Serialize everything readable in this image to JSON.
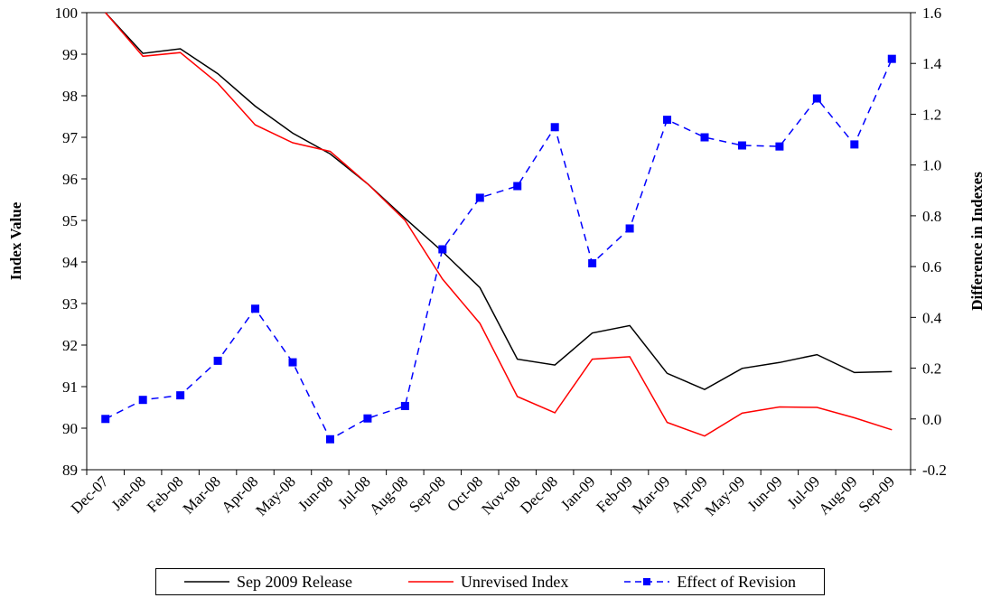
{
  "chart_data": {
    "type": "line",
    "categories": [
      "Dec-07",
      "Jan-08",
      "Feb-08",
      "Mar-08",
      "Apr-08",
      "May-08",
      "Jun-08",
      "Jul-08",
      "Aug-08",
      "Sep-08",
      "Oct-08",
      "Nov-08",
      "Dec-08",
      "Jan-09",
      "Feb-09",
      "Mar-09",
      "Apr-09",
      "May-09",
      "Jun-09",
      "Jul-09",
      "Aug-09",
      "Sep-09"
    ],
    "ylabel": "Index Value",
    "y2label": "Difference in Indexes",
    "ylim": [
      89,
      100
    ],
    "y2lim": [
      -0.2,
      1.6
    ],
    "yticks": [
      "89",
      "90",
      "91",
      "92",
      "93",
      "94",
      "95",
      "96",
      "97",
      "98",
      "99",
      "100"
    ],
    "y2ticks": [
      "-0.2",
      "0.0",
      "0.2",
      "0.4",
      "0.6",
      "0.8",
      "1.0",
      "1.2",
      "1.4",
      "1.6"
    ],
    "grid": false,
    "legend_position": "bottom",
    "series": [
      {
        "name": "Sep 2009 Release",
        "axis": "left",
        "color": "#000000",
        "style": "solid",
        "values": [
          100.0,
          99.02,
          99.13,
          98.53,
          97.75,
          97.1,
          96.6,
          95.88,
          95.05,
          94.25,
          93.38,
          91.66,
          91.52,
          92.29,
          92.47,
          91.32,
          90.93,
          91.44,
          91.58,
          91.77,
          91.34,
          91.36
        ]
      },
      {
        "name": "Unrevised Index",
        "axis": "left",
        "color": "#ff0000",
        "style": "solid",
        "values": [
          100.0,
          98.95,
          99.04,
          98.3,
          97.3,
          96.87,
          96.66,
          95.88,
          95.0,
          93.59,
          92.52,
          90.76,
          90.37,
          91.66,
          91.72,
          90.14,
          89.81,
          90.36,
          90.51,
          90.5,
          90.25,
          89.96
        ]
      },
      {
        "name": "Effect of Revision",
        "axis": "right",
        "color": "#0000ff",
        "style": "dashed",
        "marker": "square",
        "values": [
          0.0,
          0.075,
          0.093,
          0.229,
          0.434,
          0.223,
          -0.08,
          0.002,
          0.051,
          0.668,
          0.871,
          0.917,
          1.149,
          0.613,
          0.75,
          1.178,
          1.109,
          1.077,
          1.073,
          1.262,
          1.081,
          1.418
        ]
      }
    ]
  }
}
